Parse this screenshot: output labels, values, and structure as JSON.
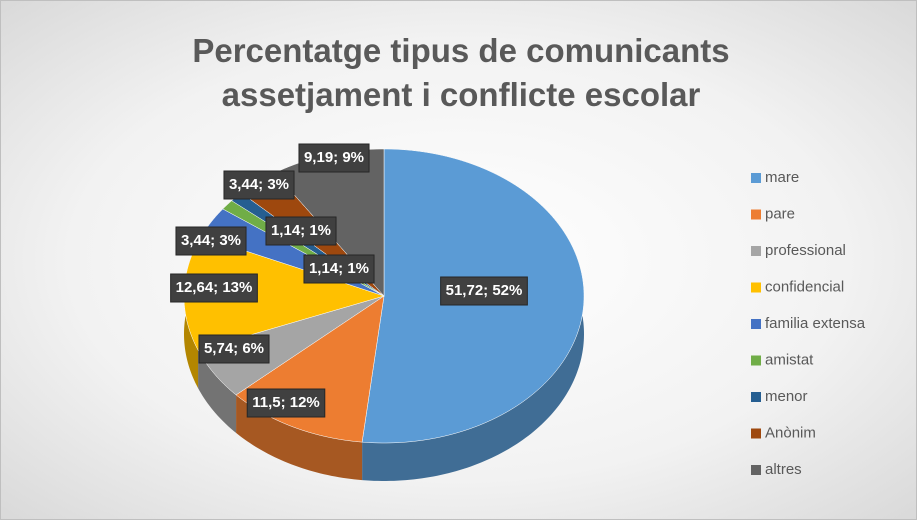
{
  "chart_data": {
    "type": "pie",
    "title": "Percentatge tipus de comunicants assetjament i conflicte escolar",
    "categories": [
      "mare",
      "pare",
      "professional",
      "confidencial",
      "familia extensa",
      "amistat",
      "menor",
      "Anònim",
      "altres"
    ],
    "values": [
      51.72,
      11.5,
      5.74,
      12.64,
      3.44,
      1.14,
      1.14,
      3.44,
      9.19
    ],
    "value_labels": [
      "51,72; 52%",
      "11,5; 12%",
      "5,74; 6%",
      "12,64; 13%",
      "3,44; 3%",
      "1,14; 1%",
      "1,14; 1%",
      "3,44; 3%",
      "9,19; 9%"
    ],
    "colors": [
      "#5b9bd5",
      "#ed7d31",
      "#a5a5a5",
      "#ffc000",
      "#4472c4",
      "#70ad47",
      "#255e91",
      "#9e480e",
      "#636363"
    ],
    "legend": "right"
  }
}
